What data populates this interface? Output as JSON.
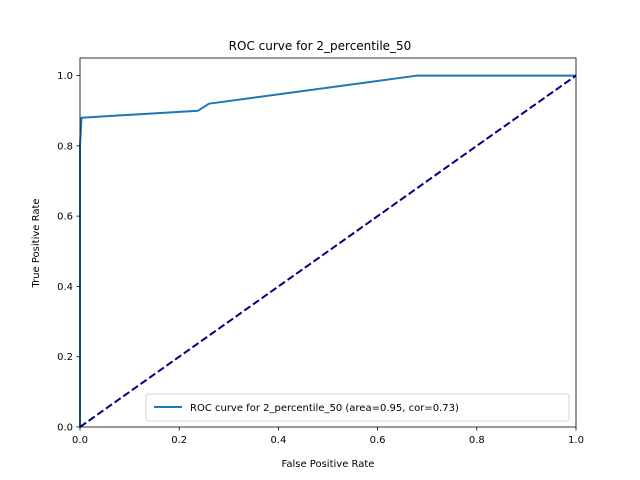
{
  "chart_data": {
    "type": "line",
    "title": "ROC curve for 2_percentile_50",
    "xlabel": "False Positive Rate",
    "ylabel": "True Positive Rate",
    "xlim": [
      0.0,
      1.0
    ],
    "ylim": [
      0.0,
      1.05
    ],
    "grid": false,
    "legend_position": "lower-right",
    "x_ticks": [
      {
        "value": 0.0,
        "label": "0.0"
      },
      {
        "value": 0.2,
        "label": "0.2"
      },
      {
        "value": 0.4,
        "label": "0.4"
      },
      {
        "value": 0.6,
        "label": "0.6"
      },
      {
        "value": 0.8,
        "label": "0.8"
      },
      {
        "value": 1.0,
        "label": "1.0"
      }
    ],
    "y_ticks": [
      {
        "value": 0.0,
        "label": "0.0"
      },
      {
        "value": 0.2,
        "label": "0.2"
      },
      {
        "value": 0.4,
        "label": "0.4"
      },
      {
        "value": 0.6,
        "label": "0.6"
      },
      {
        "value": 0.8,
        "label": "0.8"
      },
      {
        "value": 1.0,
        "label": "1.0"
      }
    ],
    "series": [
      {
        "name": "ROC curve for 2_percentile_50 (area=0.95, cor=0.73)",
        "color": "#1f77b4",
        "style": "solid",
        "x": [
          0.0,
          0.0,
          0.003,
          0.238,
          0.26,
          0.68,
          1.0
        ],
        "y": [
          0.0,
          0.8,
          0.88,
          0.9,
          0.92,
          1.0,
          1.0
        ]
      },
      {
        "color": "#000080",
        "style": "dashed",
        "x": [
          0.0,
          1.0
        ],
        "y": [
          0.0,
          1.0
        ]
      }
    ]
  }
}
